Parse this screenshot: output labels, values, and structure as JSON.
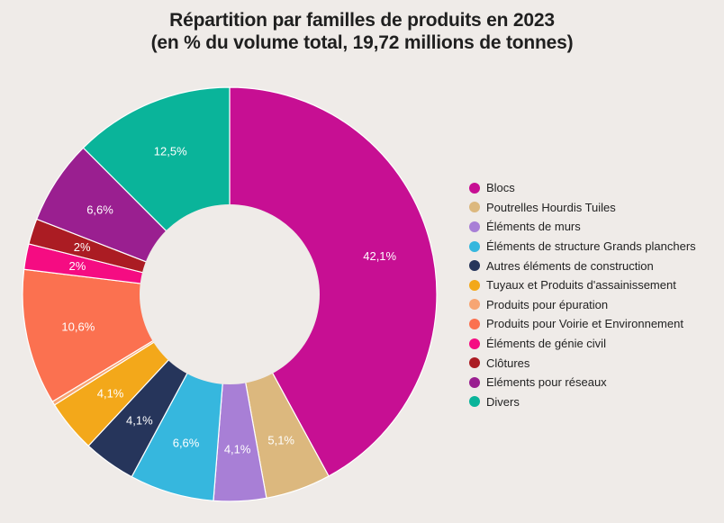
{
  "chart_data": {
    "type": "pie",
    "subtype": "donut",
    "title": "Répartition par familles de produits en 2023",
    "subtitle": "(en % du volume total, 19,72 millions de tonnes)",
    "legend_position": "right",
    "slices": [
      {
        "label": "Blocs",
        "value": 42.1,
        "value_label": "42,1%",
        "color": "#c70f93"
      },
      {
        "label": "Poutrelles Hourdis Tuiles",
        "value": 5.1,
        "value_label": "5,1%",
        "color": "#dcb87e"
      },
      {
        "label": "Éléments de murs",
        "value": 4.1,
        "value_label": "4,1%",
        "color": "#a87fd6"
      },
      {
        "label": "Éléments de structure Grands planchers",
        "value": 6.6,
        "value_label": "6,6%",
        "color": "#36b7de"
      },
      {
        "label": "Autres éléments de construction",
        "value": 4.1,
        "value_label": "4,1%",
        "color": "#26355b"
      },
      {
        "label": "Tuyaux et Produits d'assainissement",
        "value": 4.1,
        "value_label": "4,1%",
        "color": "#f3a81a"
      },
      {
        "label": "Produits pour épuration",
        "value": 0.3,
        "value_label": "",
        "color": "#f7a573"
      },
      {
        "label": "Produits pour Voirie et Environnement",
        "value": 10.6,
        "value_label": "10,6%",
        "color": "#fb7150"
      },
      {
        "label": "Éléments de génie civil",
        "value": 2,
        "value_label": "2%",
        "color": "#f50c82"
      },
      {
        "label": "Clôtures",
        "value": 2,
        "value_label": "2%",
        "color": "#ab1c23"
      },
      {
        "label": "Eléments pour réseaux",
        "value": 6.6,
        "value_label": "6,6%",
        "color": "#9a1f90"
      },
      {
        "label": "Divers",
        "value": 12.5,
        "value_label": "12,5%",
        "color": "#0ab49a"
      }
    ]
  }
}
